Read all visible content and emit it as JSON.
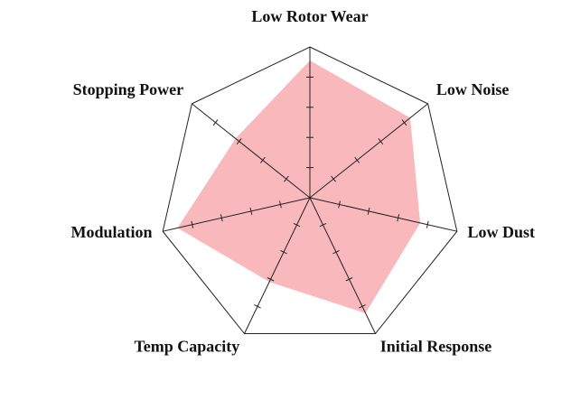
{
  "chart_data": {
    "type": "radar",
    "axes": [
      "Low Rotor Wear",
      "Low Noise",
      "Low Dust",
      "Initial Response",
      "Temp Capacity",
      "Modulation",
      "Stopping Power"
    ],
    "series": [
      {
        "values": [
          9.1,
          8.5,
          7.5,
          8.5,
          6.2,
          9.0,
          6.3
        ]
      }
    ],
    "range": [
      0,
      10
    ],
    "tick_count": 5,
    "fill_color": "#f9b8bc",
    "grid": true
  }
}
